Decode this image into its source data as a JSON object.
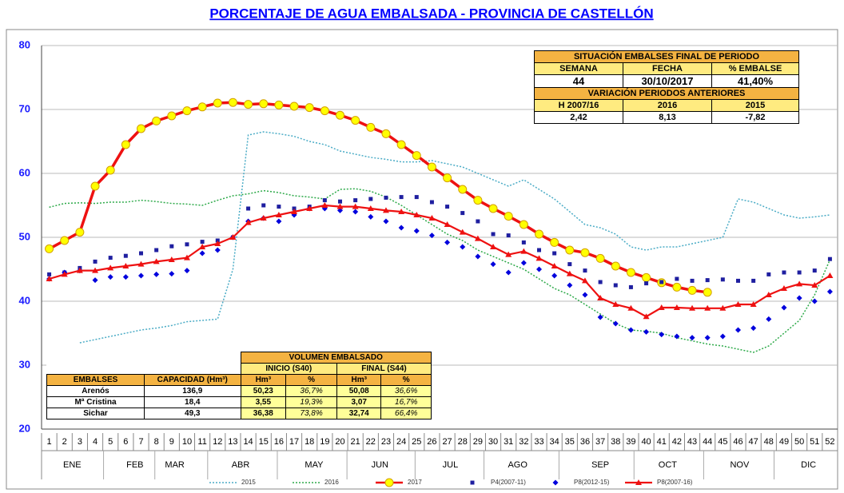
{
  "chart_data": {
    "type": "line",
    "title": "PORCENTAJE DE AGUA EMBALSADA - PROVINCIA DE CASTELLÓN",
    "x": [
      1,
      2,
      3,
      4,
      5,
      6,
      7,
      8,
      9,
      10,
      11,
      12,
      13,
      14,
      15,
      16,
      17,
      18,
      19,
      20,
      21,
      22,
      23,
      24,
      25,
      26,
      27,
      28,
      29,
      30,
      31,
      32,
      33,
      34,
      35,
      36,
      37,
      38,
      39,
      40,
      41,
      42,
      43,
      44,
      45,
      46,
      47,
      48,
      49,
      50,
      51,
      52
    ],
    "xlim": [
      0.5,
      52.5
    ],
    "months": [
      "ENE",
      "FEB",
      "MAR",
      "ABR",
      "MAY",
      "JUN",
      "JUL",
      "AGO",
      "SEP",
      "OCT",
      "NOV",
      "DIC"
    ],
    "ylim": [
      20,
      80
    ],
    "yticks": [
      20,
      30,
      40,
      50,
      60,
      70,
      80
    ],
    "grid": true,
    "series": [
      {
        "name": "2015",
        "color": "#4bacc6",
        "line": "dotted",
        "line_width": 1.5,
        "marker": "none",
        "values": [
          null,
          null,
          33.5,
          34,
          34.5,
          35,
          35.5,
          35.8,
          36.2,
          36.8,
          37,
          37.2,
          45,
          66,
          66.5,
          66.2,
          65.8,
          65,
          64.5,
          63.5,
          63,
          62.5,
          62.2,
          61.8,
          61.8,
          62,
          61.5,
          61,
          60,
          59,
          58,
          59,
          57.5,
          56,
          54,
          52,
          51.5,
          50.5,
          48.5,
          48,
          48.5,
          48.5,
          49,
          49.5,
          50,
          56,
          55.5,
          54.5,
          53.5,
          53,
          53.2,
          53.5
        ]
      },
      {
        "name": "2016",
        "color": "#2eaa4a",
        "line": "dotted",
        "line_width": 1.5,
        "marker": "none",
        "values": [
          54.7,
          55.3,
          55.4,
          55.3,
          55.5,
          55.5,
          55.8,
          55.6,
          55.3,
          55.2,
          55,
          55.8,
          56.5,
          56.8,
          57.3,
          57,
          56.5,
          56.3,
          56,
          57.5,
          57.6,
          57.2,
          56.3,
          55,
          53.5,
          52,
          50.5,
          49.5,
          48,
          47,
          46,
          45,
          43.5,
          42,
          41,
          39.5,
          38,
          36.5,
          35.5,
          35.3,
          35,
          34.3,
          33.8,
          33.3,
          33,
          32.5,
          32,
          33,
          35,
          37,
          41,
          46.5
        ]
      },
      {
        "name": "2017",
        "color": "#ee1111",
        "line": "solid",
        "line_width": 3.5,
        "marker": "circle",
        "marker_color": "#ffff00",
        "values": [
          48.2,
          49.5,
          50.8,
          58,
          60.5,
          64.5,
          67,
          68.2,
          69,
          69.8,
          70.4,
          71,
          71.1,
          70.8,
          70.9,
          70.7,
          70.5,
          70.3,
          69.8,
          69.1,
          68.3,
          67.2,
          66.2,
          64.5,
          62.8,
          61,
          59.3,
          57.5,
          55.8,
          54.5,
          53.3,
          52,
          50.5,
          49.2,
          48,
          47.6,
          46.7,
          45.5,
          44.5,
          43.7,
          42.9,
          42.2,
          41.7,
          41.4,
          null,
          null,
          null,
          null,
          null,
          null,
          null,
          null
        ]
      },
      {
        "name": "P4(2007-11)",
        "color": "#1f1fa0",
        "line": "none",
        "line_width": 0,
        "marker": "square",
        "marker_color": "#1f1fa0",
        "values": [
          44.2,
          44.5,
          45.2,
          46.2,
          46.8,
          47.1,
          47.5,
          48,
          48.6,
          48.9,
          49.3,
          49.5,
          50,
          54.5,
          55,
          54.8,
          54.5,
          54.8,
          55.8,
          55.6,
          55.8,
          56,
          56.2,
          56.3,
          56.3,
          55.5,
          54.8,
          53.8,
          52.5,
          50.5,
          50.3,
          49.2,
          48,
          47.5,
          45.8,
          44.8,
          43,
          42.5,
          42.2,
          42.8,
          43,
          43.5,
          43.2,
          43.3,
          43.4,
          43.2,
          43.2,
          44.2,
          44.5,
          44.5,
          44.8,
          46.6
        ]
      },
      {
        "name": "P8(2012-15)",
        "color": "#0000dd",
        "line": "none",
        "line_width": 0,
        "marker": "diamond",
        "marker_color": "#0000dd",
        "values": [
          43.5,
          44.5,
          44.8,
          43.3,
          43.8,
          43.8,
          44,
          44.2,
          44.3,
          44.8,
          47.5,
          48,
          50,
          52.5,
          53,
          52.5,
          53.5,
          54.5,
          54.5,
          54.2,
          54,
          53.2,
          52.5,
          51.5,
          51,
          50.3,
          49.2,
          48.5,
          47,
          45.8,
          44.5,
          46,
          45,
          44,
          42.5,
          41,
          37.5,
          36.5,
          35.5,
          35.2,
          34.8,
          34.5,
          34.3,
          34.3,
          34.5,
          35.5,
          35.8,
          37.2,
          39,
          40.5,
          40,
          41.5
        ]
      },
      {
        "name": "P8(2007-16)",
        "color": "#ee1111",
        "line": "solid",
        "line_width": 2.2,
        "marker": "triangle",
        "marker_color": "#ee1111",
        "values": [
          43.5,
          44.2,
          44.8,
          44.8,
          45.2,
          45.5,
          45.8,
          46.2,
          46.5,
          46.8,
          48.5,
          49,
          50,
          52.3,
          53,
          53.5,
          54,
          54.5,
          55,
          54.8,
          54.8,
          54.5,
          54.2,
          54,
          53.5,
          53,
          52,
          50.8,
          49.8,
          48.5,
          47.3,
          47.8,
          46.7,
          45.5,
          44.3,
          43.2,
          40.5,
          39.5,
          38.9,
          37.6,
          39,
          39,
          38.9,
          38.9,
          38.9,
          39.5,
          39.5,
          41,
          42,
          42.7,
          42.5,
          44
        ]
      }
    ]
  },
  "status_table": {
    "title": "SITUACIÓN EMBALSES FINAL DE PERIODO",
    "headers": [
      "SEMANA",
      "FECHA",
      "% EMBALSE"
    ],
    "values": [
      "44",
      "30/10/2017",
      "41,40%"
    ],
    "variation_title": "VARIACIÓN PERIODOS ANTERIORES",
    "variation_headers": [
      "H 2007/16",
      "2016",
      "2015"
    ],
    "variation_values": [
      "2,42",
      "8,13",
      "-7,82"
    ]
  },
  "volume_table": {
    "title": "VOLUMEN EMBALSADO",
    "groups": [
      "INICIO (S40)",
      "FINAL (S44)"
    ],
    "headers": [
      "EMBALSES",
      "CAPACIDAD (Hm³)",
      "Hm³",
      "%",
      "Hm³",
      "%"
    ],
    "rows": [
      [
        "Arenós",
        "136,9",
        "50,23",
        "36,7%",
        "50,08",
        "36,6%"
      ],
      [
        "Mª Cristina",
        "18,4",
        "3,55",
        "19,3%",
        "3,07",
        "16,7%"
      ],
      [
        "Sichar",
        "49,3",
        "36,38",
        "73,8%",
        "32,74",
        "66,4%"
      ]
    ]
  }
}
